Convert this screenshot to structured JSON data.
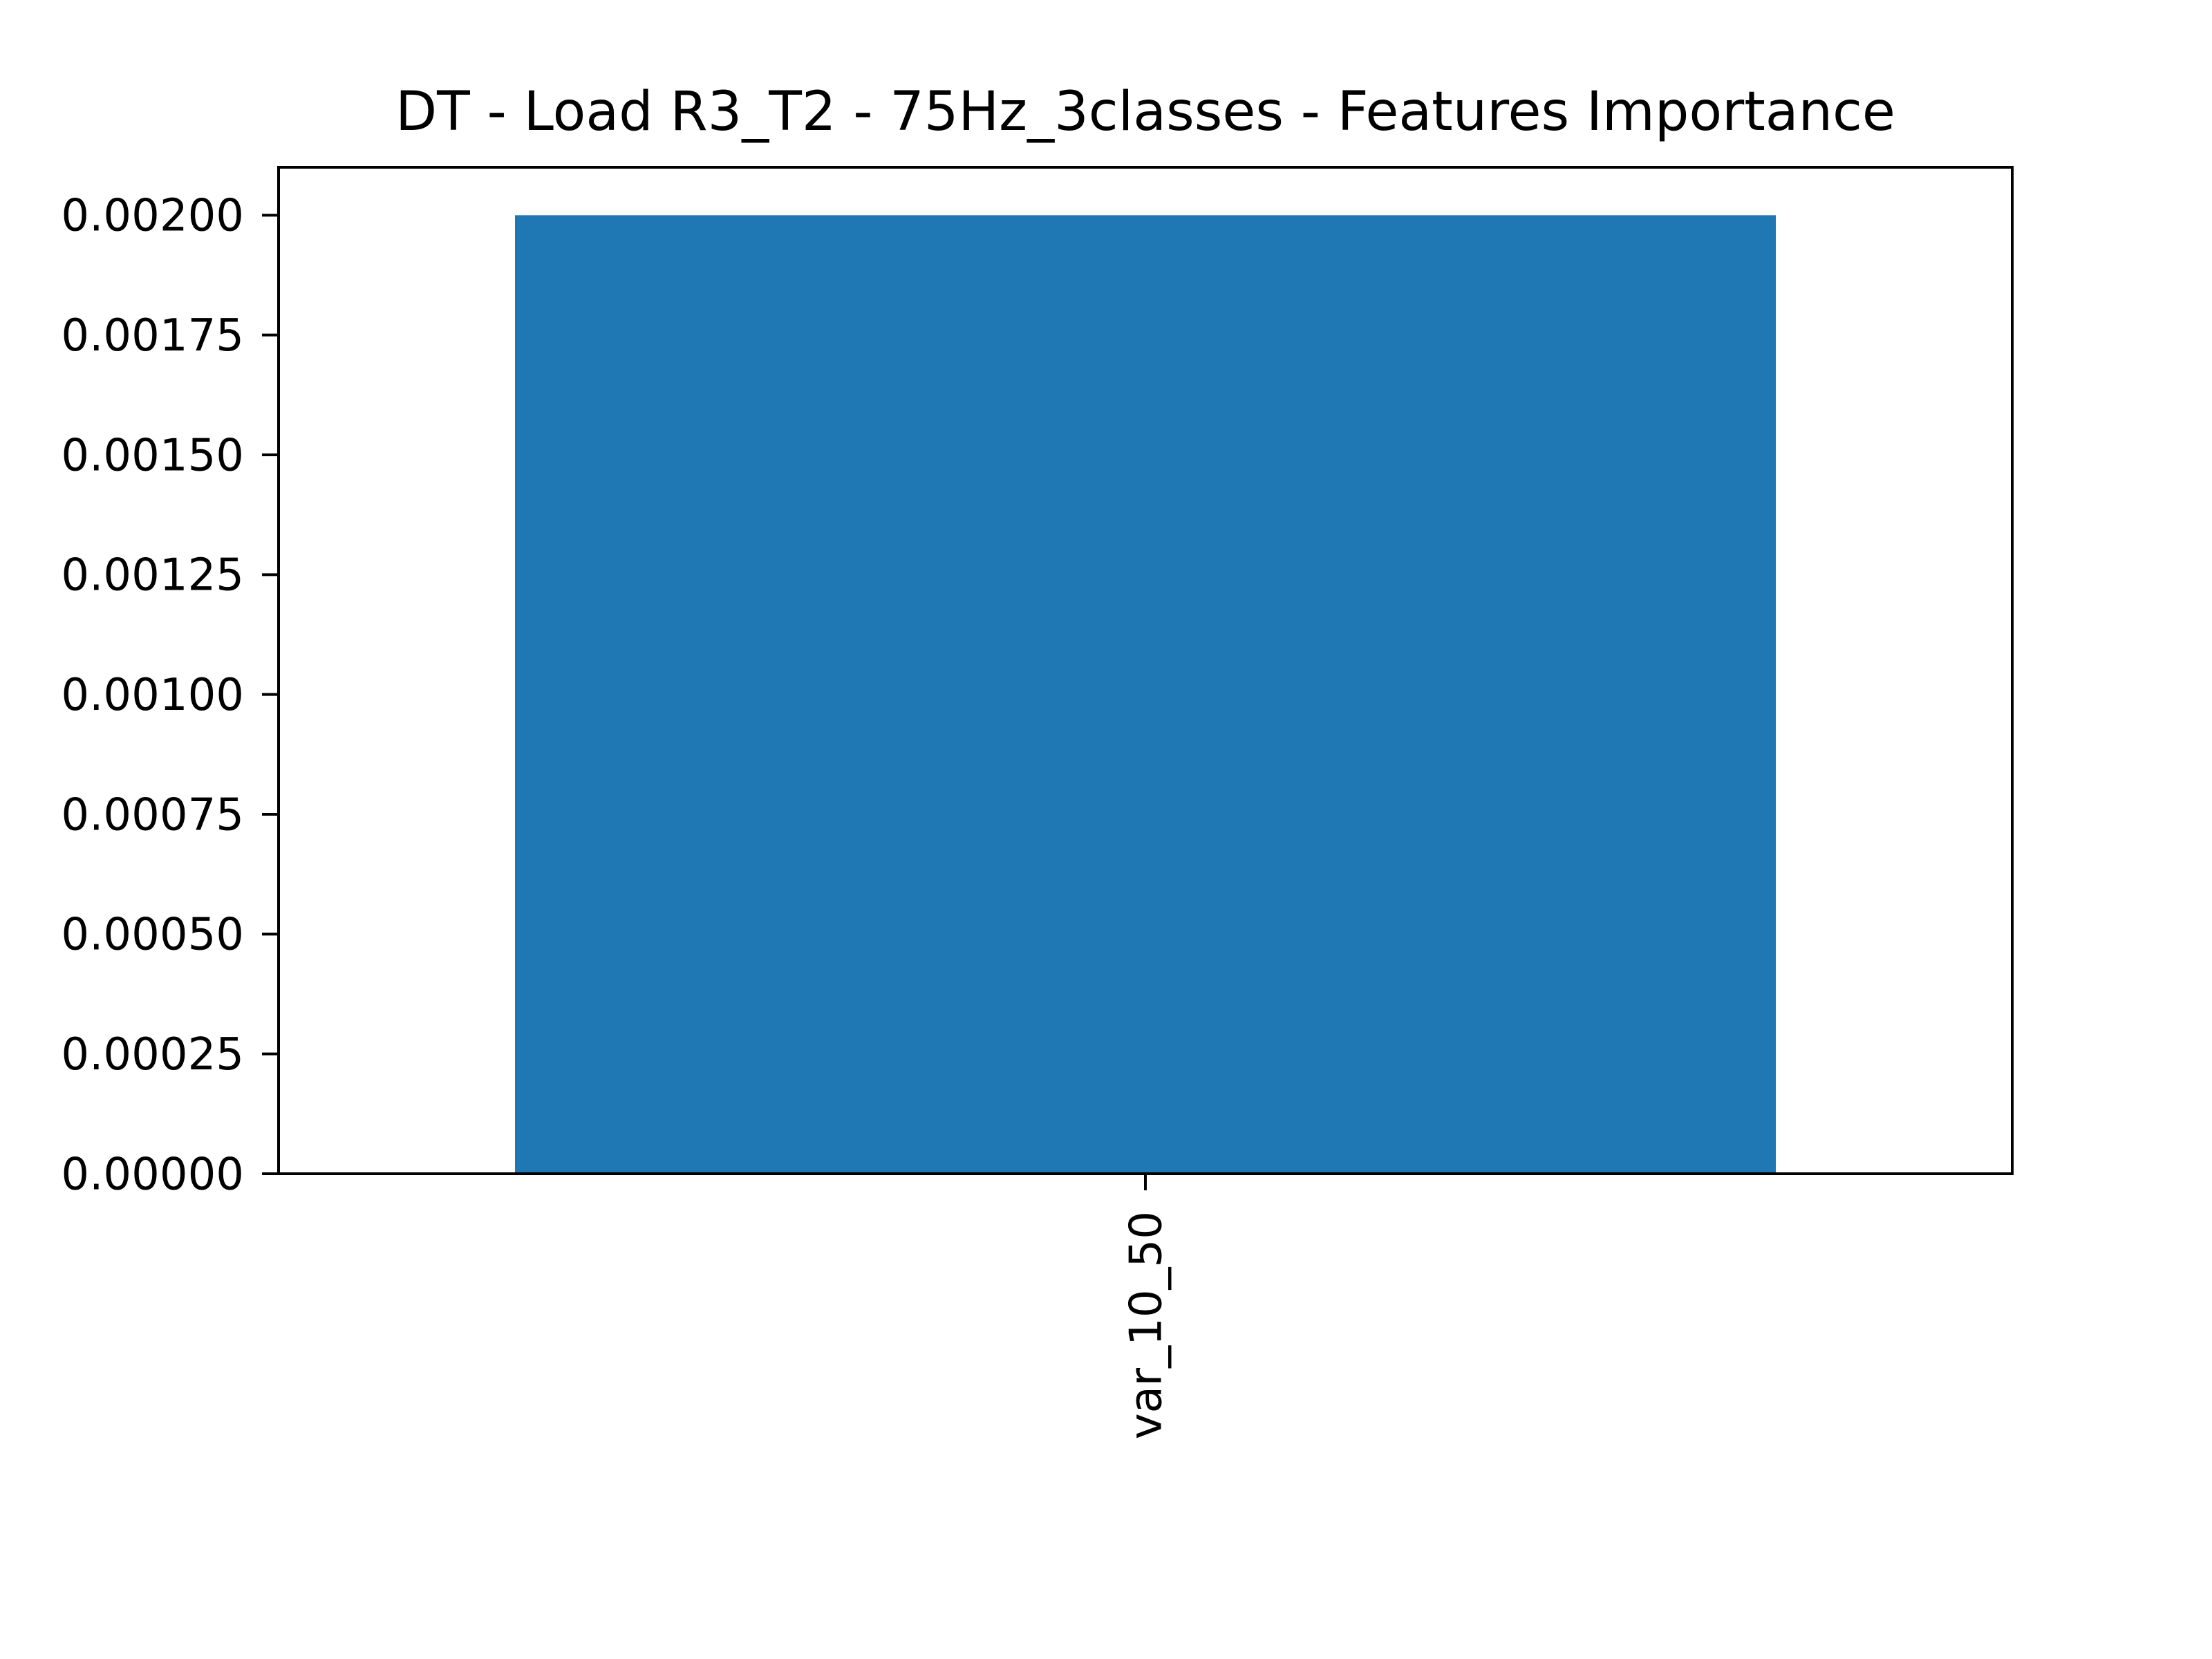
{
  "chart_data": {
    "type": "bar",
    "title": "DT - Load R3_T2 - 75Hz_3classes - Features Importance",
    "xlabel": "",
    "ylabel": "",
    "categories": [
      "var_10_50"
    ],
    "values": [
      0.002
    ],
    "ylim": [
      0,
      0.0021
    ],
    "yticks": [
      0,
      0.00025,
      0.0005,
      0.00075,
      0.001,
      0.00125,
      0.0015,
      0.00175,
      0.002
    ],
    "ytick_labels": [
      "0.00000",
      "0.00025",
      "0.00050",
      "0.00075",
      "0.00100",
      "0.00125",
      "0.00150",
      "0.00175",
      "0.00200"
    ],
    "bar_color": "#1f77b4",
    "xtick_rotation": "vertical",
    "grid": false,
    "legend": false
  }
}
